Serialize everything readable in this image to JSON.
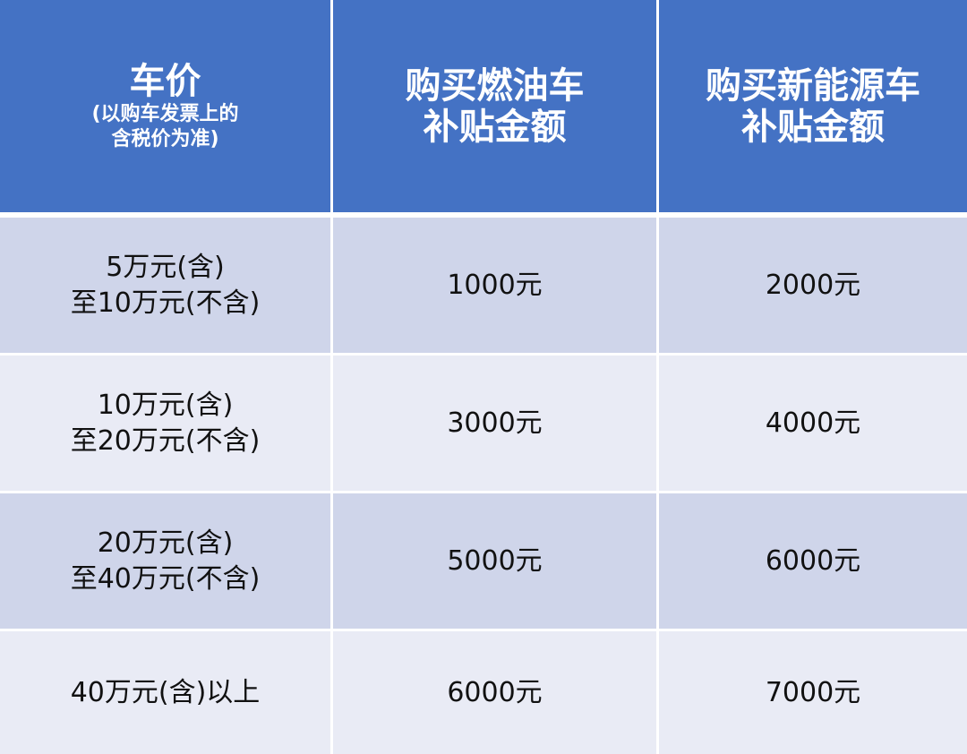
{
  "colors": {
    "header": "#4472C4",
    "row_odd": "#CFD5EA",
    "row_even": "#E9EBF5"
  },
  "header": {
    "col1_title": "车价",
    "col1_note_1": "(以购车发票上的",
    "col1_note_2": "含税价为准)",
    "col2_line1": "购买燃油车",
    "col2_line2": "补贴金额",
    "col3_line1": "购买新能源车",
    "col3_line2": "补贴金额"
  },
  "rows": [
    {
      "price_1": "5万元(含)",
      "price_2": "至10万元(不含)",
      "fuel": "1000元",
      "nev": "2000元"
    },
    {
      "price_1": "10万元(含)",
      "price_2": "至20万元(不含)",
      "fuel": "3000元",
      "nev": "4000元"
    },
    {
      "price_1": "20万元(含)",
      "price_2": "至40万元(不含)",
      "fuel": "5000元",
      "nev": "6000元"
    },
    {
      "price_1": "40万元(含)以上",
      "fuel": "6000元",
      "nev": "7000元"
    }
  ]
}
